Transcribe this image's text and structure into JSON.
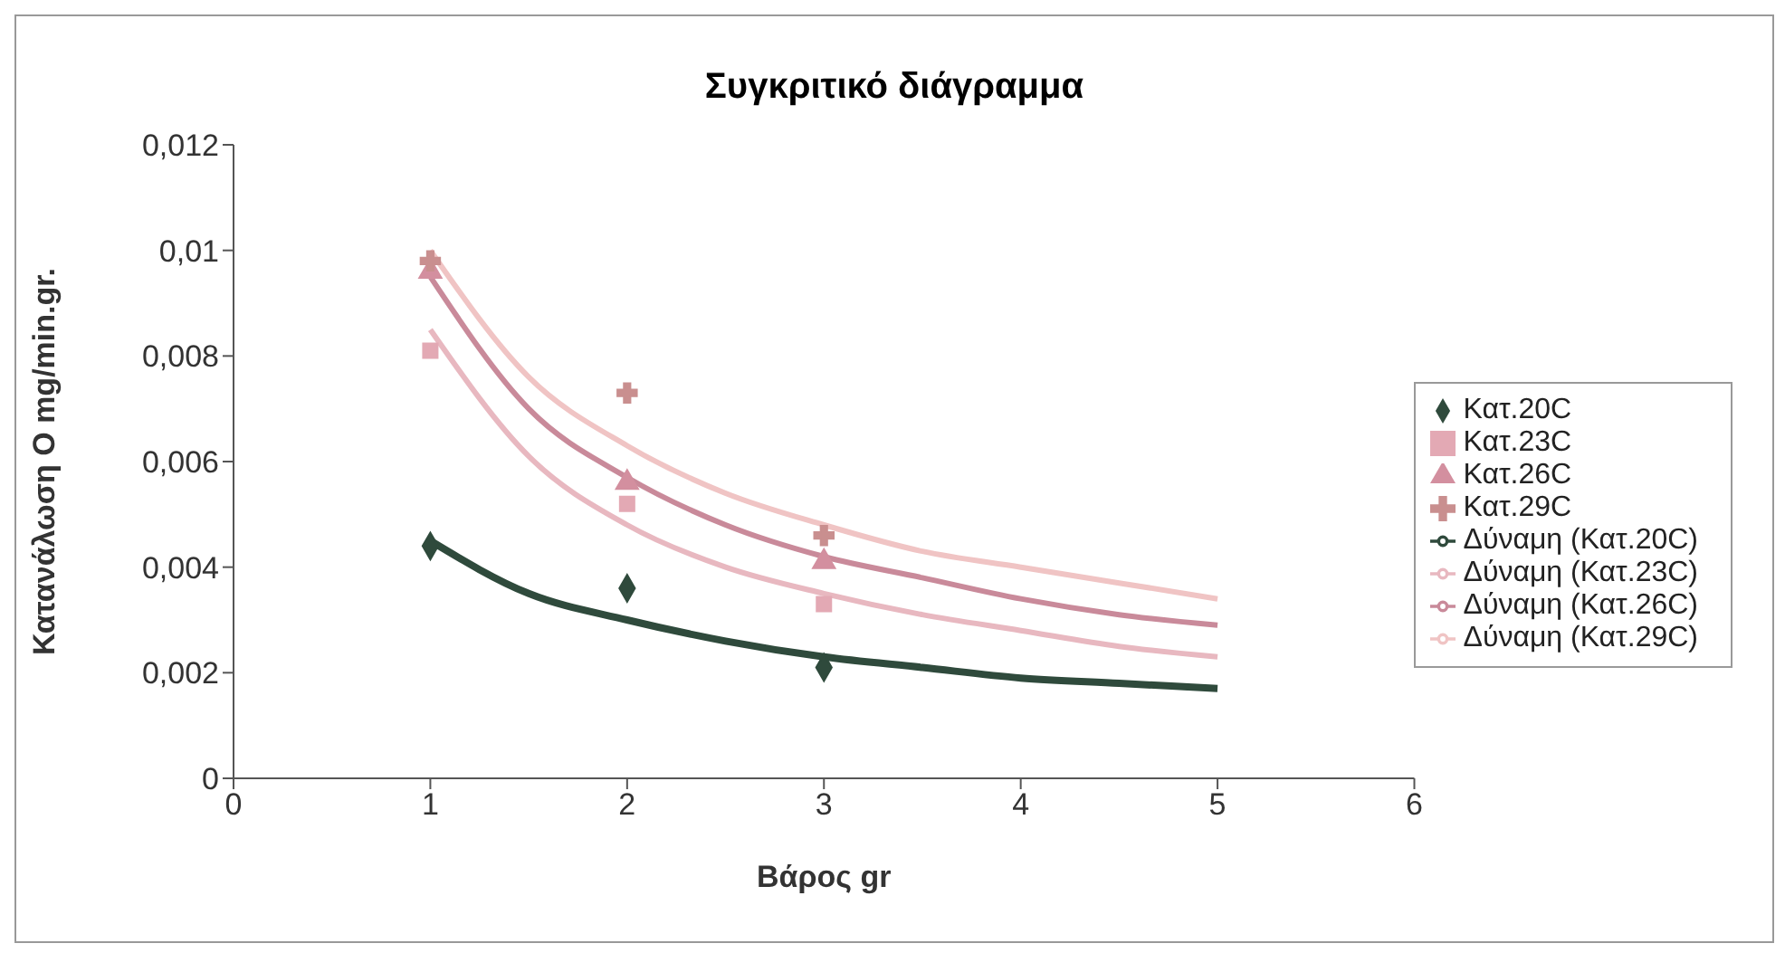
{
  "chart_data": {
    "type": "scatter",
    "title": "Συγκριτικό διάγραμμα",
    "xlabel": "Βάρος gr",
    "ylabel": "Κατανάλωση O mg/min.gr.",
    "xlim": [
      0,
      6
    ],
    "xticks": [
      0,
      1,
      2,
      3,
      4,
      5,
      6
    ],
    "ylim": [
      0,
      0.012
    ],
    "yticks": [
      0,
      {
        "value": 0.002,
        "label": "0,002"
      },
      {
        "value": 0.004,
        "label": "0,004"
      },
      {
        "value": 0.006,
        "label": "0,006"
      },
      {
        "value": 0.008,
        "label": "0,008"
      },
      {
        "value": 0.01,
        "label": "0,01"
      },
      {
        "value": 0.012,
        "label": "0,012"
      }
    ],
    "grid": false,
    "legend": "right",
    "series": [
      {
        "name": "Κατ.20C",
        "marker": "diamond",
        "color": "#2f4a3c",
        "x": [
          1,
          2,
          3
        ],
        "values": [
          0.0044,
          0.0036,
          0.0021
        ]
      },
      {
        "name": "Κατ.23C",
        "marker": "square",
        "color": "#e3a9b4",
        "x": [
          1,
          2,
          3
        ],
        "values": [
          0.0081,
          0.0052,
          0.0033
        ]
      },
      {
        "name": "Κατ.26C",
        "marker": "triangle",
        "color": "#d38f9f",
        "x": [
          1,
          2,
          3
        ],
        "values": [
          0.0096,
          0.0056,
          0.0041
        ]
      },
      {
        "name": "Κατ.29C",
        "marker": "cross",
        "color": "#c98f8f",
        "x": [
          1,
          2,
          3
        ],
        "values": [
          0.0098,
          0.0073,
          0.0046
        ]
      },
      {
        "name": "Δύναμη (Κατ.20C)",
        "type": "line",
        "marker": "none",
        "color": "#2f4a3c",
        "x": [
          1,
          1.5,
          2,
          2.5,
          3,
          3.5,
          4,
          4.5,
          5
        ],
        "values": [
          0.0045,
          0.0035,
          0.003,
          0.0026,
          0.0023,
          0.0021,
          0.0019,
          0.0018,
          0.0017
        ]
      },
      {
        "name": "Δύναμη (Κατ.23C)",
        "type": "line",
        "marker": "none",
        "color": "#e8b8c0",
        "x": [
          1,
          1.5,
          2,
          2.5,
          3,
          3.5,
          4,
          4.5,
          5
        ],
        "values": [
          0.0085,
          0.0061,
          0.0048,
          0.004,
          0.0035,
          0.0031,
          0.0028,
          0.0025,
          0.0023
        ]
      },
      {
        "name": "Δύναμη (Κατ.26C)",
        "type": "line",
        "marker": "none",
        "color": "#c98a9a",
        "x": [
          1,
          1.5,
          2,
          2.5,
          3,
          3.5,
          4,
          4.5,
          5
        ],
        "values": [
          0.0095,
          0.007,
          0.0057,
          0.0048,
          0.0042,
          0.0038,
          0.0034,
          0.0031,
          0.0029
        ]
      },
      {
        "name": "Δύναμη (Κατ.29C)",
        "type": "line",
        "marker": "none",
        "color": "#f0c4c4",
        "x": [
          1,
          1.5,
          2,
          2.5,
          3,
          3.5,
          4,
          4.5,
          5
        ],
        "values": [
          0.01,
          0.0076,
          0.0063,
          0.0054,
          0.0048,
          0.0043,
          0.004,
          0.0037,
          0.0034
        ]
      }
    ]
  }
}
